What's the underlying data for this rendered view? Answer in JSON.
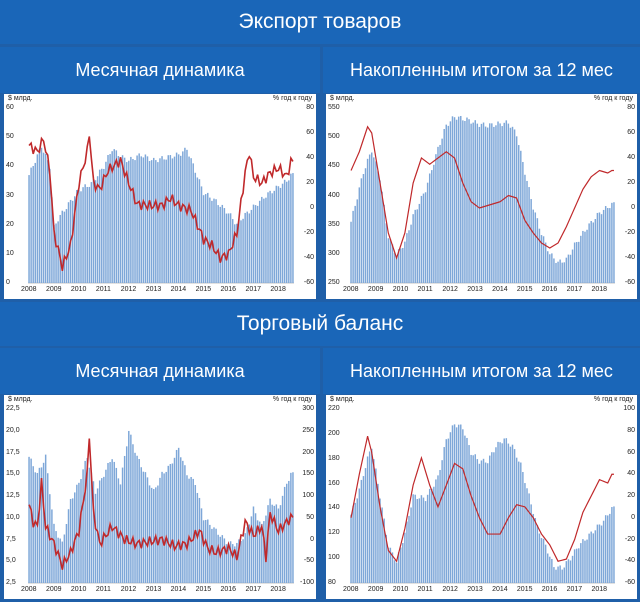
{
  "colors": {
    "background": "#1f5fa8",
    "bars": "#7ea7d8",
    "line": "#c0292b"
  },
  "sections": [
    {
      "title": "Экспорт товаров",
      "left_title": "Месячная динамика",
      "right_title": "Накопленным итогом за 12 мес"
    },
    {
      "title": "Торговый баланс",
      "left_title": "Месячная динамика",
      "right_title": "Накопленным итогом за 12 мес"
    }
  ],
  "chart_data": [
    {
      "type": "bar+line",
      "ylabel_left": "$ млрд.",
      "ylabel_right": "% год к году",
      "ylim_left": [
        0,
        60
      ],
      "ylim_right": [
        -60,
        80
      ],
      "yticks_left": [
        "0",
        "10",
        "20",
        "30",
        "40",
        "50",
        "60"
      ],
      "yticks_right": [
        "-60",
        "-40",
        "-20",
        "0",
        "20",
        "40",
        "60",
        "80"
      ],
      "x_labels": [
        "2008",
        "2009",
        "2010",
        "2011",
        "2012",
        "2013",
        "2014",
        "2015",
        "2016",
        "2017",
        "2018"
      ],
      "bars_keys": [
        [
          0,
          37
        ],
        [
          6,
          47
        ],
        [
          10,
          40
        ],
        [
          12,
          19
        ],
        [
          14,
          22
        ],
        [
          18,
          26
        ],
        [
          24,
          32
        ],
        [
          30,
          34
        ],
        [
          36,
          40
        ],
        [
          40,
          46
        ],
        [
          45,
          43
        ],
        [
          48,
          42
        ],
        [
          54,
          44
        ],
        [
          60,
          42
        ],
        [
          66,
          43
        ],
        [
          72,
          44
        ],
        [
          76,
          46
        ],
        [
          84,
          31
        ],
        [
          90,
          28
        ],
        [
          96,
          24
        ],
        [
          100,
          20
        ],
        [
          102,
          22
        ],
        [
          108,
          26
        ],
        [
          114,
          30
        ],
        [
          120,
          33
        ],
        [
          124,
          35
        ],
        [
          126,
          37
        ]
      ],
      "line_keys": [
        [
          0,
          50
        ],
        [
          4,
          45
        ],
        [
          7,
          55
        ],
        [
          10,
          30
        ],
        [
          12,
          -20
        ],
        [
          16,
          -47
        ],
        [
          20,
          -30
        ],
        [
          24,
          20
        ],
        [
          28,
          45
        ],
        [
          29,
          60
        ],
        [
          31,
          20
        ],
        [
          34,
          15
        ],
        [
          38,
          30
        ],
        [
          44,
          38
        ],
        [
          48,
          20
        ],
        [
          52,
          3
        ],
        [
          58,
          2
        ],
        [
          64,
          2
        ],
        [
          68,
          8
        ],
        [
          72,
          2
        ],
        [
          78,
          -2
        ],
        [
          84,
          -25
        ],
        [
          88,
          -30
        ],
        [
          92,
          -40
        ],
        [
          96,
          -37
        ],
        [
          100,
          -20
        ],
        [
          104,
          28
        ],
        [
          106,
          45
        ],
        [
          108,
          25
        ],
        [
          112,
          20
        ],
        [
          116,
          28
        ],
        [
          120,
          32
        ],
        [
          124,
          25
        ],
        [
          126,
          37
        ]
      ]
    },
    {
      "type": "bar+line",
      "ylabel_left": "$ млрд.",
      "ylabel_right": "% год к году",
      "ylim_left": [
        250,
        550
      ],
      "ylim_right": [
        -60,
        80
      ],
      "yticks_left": [
        "250",
        "300",
        "350",
        "400",
        "450",
        "500",
        "550"
      ],
      "yticks_right": [
        "-60",
        "-40",
        "-20",
        "0",
        "20",
        "40",
        "60",
        "80"
      ],
      "x_labels": [
        "2008",
        "2009",
        "2010",
        "2011",
        "2012",
        "2013",
        "2014",
        "2015",
        "2016",
        "2017",
        "2018"
      ],
      "bars_keys": [
        [
          0,
          355
        ],
        [
          6,
          440
        ],
        [
          10,
          478
        ],
        [
          14,
          430
        ],
        [
          18,
          330
        ],
        [
          22,
          298
        ],
        [
          26,
          320
        ],
        [
          30,
          365
        ],
        [
          36,
          410
        ],
        [
          42,
          480
        ],
        [
          46,
          520
        ],
        [
          50,
          535
        ],
        [
          56,
          530
        ],
        [
          62,
          522
        ],
        [
          66,
          520
        ],
        [
          70,
          522
        ],
        [
          76,
          525
        ],
        [
          80,
          505
        ],
        [
          84,
          440
        ],
        [
          88,
          380
        ],
        [
          92,
          335
        ],
        [
          96,
          300
        ],
        [
          100,
          285
        ],
        [
          104,
          290
        ],
        [
          108,
          315
        ],
        [
          114,
          345
        ],
        [
          120,
          370
        ],
        [
          126,
          385
        ]
      ],
      "line_keys": [
        [
          0,
          30
        ],
        [
          4,
          45
        ],
        [
          8,
          65
        ],
        [
          10,
          60
        ],
        [
          14,
          20
        ],
        [
          18,
          -20
        ],
        [
          22,
          -40
        ],
        [
          26,
          -20
        ],
        [
          30,
          20
        ],
        [
          34,
          40
        ],
        [
          38,
          35
        ],
        [
          42,
          40
        ],
        [
          46,
          45
        ],
        [
          50,
          40
        ],
        [
          54,
          20
        ],
        [
          58,
          5
        ],
        [
          62,
          0
        ],
        [
          66,
          2
        ],
        [
          72,
          5
        ],
        [
          76,
          10
        ],
        [
          80,
          8
        ],
        [
          84,
          -10
        ],
        [
          88,
          -20
        ],
        [
          92,
          -28
        ],
        [
          96,
          -32
        ],
        [
          100,
          -28
        ],
        [
          104,
          -15
        ],
        [
          108,
          0
        ],
        [
          112,
          15
        ],
        [
          116,
          25
        ],
        [
          120,
          30
        ],
        [
          124,
          28
        ],
        [
          126,
          30
        ]
      ]
    },
    {
      "type": "bar+line",
      "ylabel_left": "$ млрд.",
      "ylabel_right": "% год к году",
      "ylim_left": [
        2.5,
        22.5
      ],
      "ylim_right": [
        -100,
        300
      ],
      "yticks_left": [
        "2,5",
        "5,0",
        "7,5",
        "10,0",
        "12,5",
        "15,0",
        "17,5",
        "20,0",
        "22,5"
      ],
      "yticks_right": [
        "-100",
        "-50",
        "0",
        "50",
        "100",
        "150",
        "200",
        "250",
        "300"
      ],
      "x_labels": [
        "2008",
        "2009",
        "2010",
        "2011",
        "2012",
        "2013",
        "2014",
        "2015",
        "2016",
        "2017",
        "2018"
      ],
      "bars_keys": [
        [
          0,
          17
        ],
        [
          4,
          15
        ],
        [
          8,
          17
        ],
        [
          12,
          9
        ],
        [
          16,
          7
        ],
        [
          20,
          12
        ],
        [
          24,
          14
        ],
        [
          28,
          17
        ],
        [
          32,
          13
        ],
        [
          36,
          15
        ],
        [
          40,
          17
        ],
        [
          44,
          14
        ],
        [
          48,
          20
        ],
        [
          52,
          17
        ],
        [
          56,
          15
        ],
        [
          60,
          13
        ],
        [
          64,
          15
        ],
        [
          68,
          16
        ],
        [
          72,
          18
        ],
        [
          76,
          15
        ],
        [
          80,
          14
        ],
        [
          84,
          10
        ],
        [
          88,
          9
        ],
        [
          92,
          8
        ],
        [
          96,
          7
        ],
        [
          100,
          7
        ],
        [
          104,
          8
        ],
        [
          108,
          11
        ],
        [
          112,
          9
        ],
        [
          116,
          12
        ],
        [
          120,
          11
        ],
        [
          124,
          14
        ],
        [
          126,
          15
        ]
      ],
      "line_keys": [
        [
          0,
          80
        ],
        [
          2,
          40
        ],
        [
          4,
          30
        ],
        [
          6,
          130
        ],
        [
          8,
          30
        ],
        [
          12,
          -10
        ],
        [
          16,
          -60
        ],
        [
          20,
          -30
        ],
        [
          24,
          20
        ],
        [
          28,
          150
        ],
        [
          29,
          240
        ],
        [
          31,
          60
        ],
        [
          34,
          -10
        ],
        [
          40,
          30
        ],
        [
          46,
          0
        ],
        [
          52,
          -10
        ],
        [
          58,
          -5
        ],
        [
          64,
          0
        ],
        [
          70,
          -15
        ],
        [
          76,
          -10
        ],
        [
          82,
          20
        ],
        [
          86,
          -20
        ],
        [
          90,
          -30
        ],
        [
          96,
          -20
        ],
        [
          100,
          -40
        ],
        [
          104,
          40
        ],
        [
          108,
          10
        ],
        [
          112,
          30
        ],
        [
          114,
          -40
        ],
        [
          116,
          60
        ],
        [
          120,
          20
        ],
        [
          124,
          40
        ],
        [
          126,
          50
        ]
      ]
    },
    {
      "type": "bar+line",
      "ylabel_left": "$ млрд.",
      "ylabel_right": "% год к году",
      "ylim_left": [
        80,
        220
      ],
      "ylim_right": [
        -60,
        100
      ],
      "yticks_left": [
        "80",
        "100",
        "120",
        "140",
        "160",
        "180",
        "200",
        "220"
      ],
      "yticks_right": [
        "-60",
        "-40",
        "-20",
        "0",
        "20",
        "40",
        "60",
        "80",
        "100"
      ],
      "x_labels": [
        "2008",
        "2009",
        "2010",
        "2011",
        "2012",
        "2013",
        "2014",
        "2015",
        "2016",
        "2017",
        "2018"
      ],
      "bars_keys": [
        [
          0,
          135
        ],
        [
          4,
          155
        ],
        [
          8,
          180
        ],
        [
          10,
          190
        ],
        [
          14,
          150
        ],
        [
          18,
          110
        ],
        [
          22,
          97
        ],
        [
          26,
          120
        ],
        [
          30,
          150
        ],
        [
          36,
          148
        ],
        [
          42,
          165
        ],
        [
          46,
          195
        ],
        [
          50,
          208
        ],
        [
          54,
          205
        ],
        [
          58,
          185
        ],
        [
          62,
          178
        ],
        [
          66,
          178
        ],
        [
          70,
          190
        ],
        [
          74,
          196
        ],
        [
          78,
          190
        ],
        [
          82,
          175
        ],
        [
          86,
          150
        ],
        [
          90,
          125
        ],
        [
          94,
          110
        ],
        [
          98,
          93
        ],
        [
          102,
          92
        ],
        [
          106,
          100
        ],
        [
          110,
          110
        ],
        [
          116,
          120
        ],
        [
          122,
          130
        ],
        [
          126,
          140
        ]
      ],
      "line_keys": [
        [
          0,
          0
        ],
        [
          4,
          40
        ],
        [
          8,
          75
        ],
        [
          10,
          60
        ],
        [
          14,
          10
        ],
        [
          18,
          -30
        ],
        [
          22,
          -40
        ],
        [
          26,
          -10
        ],
        [
          30,
          30
        ],
        [
          34,
          55
        ],
        [
          38,
          30
        ],
        [
          42,
          10
        ],
        [
          46,
          30
        ],
        [
          50,
          50
        ],
        [
          54,
          45
        ],
        [
          58,
          20
        ],
        [
          62,
          0
        ],
        [
          66,
          -15
        ],
        [
          72,
          -15
        ],
        [
          76,
          0
        ],
        [
          80,
          12
        ],
        [
          84,
          10
        ],
        [
          88,
          0
        ],
        [
          92,
          -15
        ],
        [
          96,
          -25
        ],
        [
          100,
          -40
        ],
        [
          104,
          -38
        ],
        [
          108,
          -20
        ],
        [
          112,
          5
        ],
        [
          116,
          20
        ],
        [
          120,
          35
        ],
        [
          124,
          32
        ],
        [
          126,
          40
        ]
      ]
    }
  ]
}
